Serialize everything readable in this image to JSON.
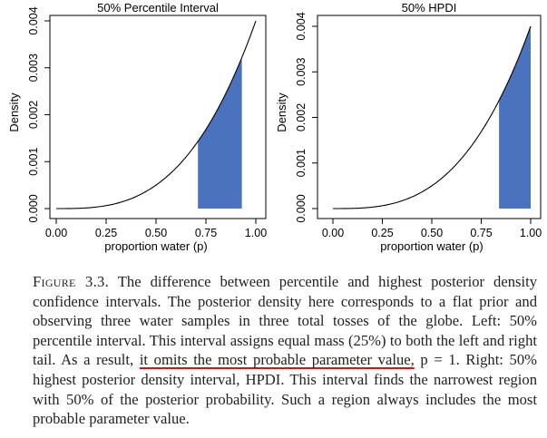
{
  "chart_data": [
    {
      "type": "area",
      "title": "50% Percentile Interval",
      "xlabel": "proportion water (p)",
      "ylabel": "Density",
      "xlim": [
        0,
        1
      ],
      "ylim": [
        0,
        0.004
      ],
      "x_ticks": [
        "0.00",
        "0.25",
        "0.50",
        "0.75",
        "1.00"
      ],
      "y_ticks": [
        "0.000",
        "0.001",
        "0.002",
        "0.003",
        "0.004"
      ],
      "curve": {
        "x": [
          0.0,
          0.1,
          0.2,
          0.3,
          0.4,
          0.5,
          0.6,
          0.7,
          0.8,
          0.9,
          1.0
        ],
        "y": [
          0.0,
          4e-06,
          3.2e-05,
          0.000108,
          0.000256,
          0.0005,
          0.000864,
          0.001372,
          0.002048,
          0.002916,
          0.004
        ]
      },
      "shaded_interval": [
        0.71,
        0.93
      ],
      "shade_color": "#4a72bd",
      "grid": false
    },
    {
      "type": "area",
      "title": "50% HPDI",
      "xlabel": "proportion water (p)",
      "ylabel": "Density",
      "xlim": [
        0,
        1
      ],
      "ylim": [
        0,
        0.004
      ],
      "x_ticks": [
        "0.00",
        "0.25",
        "0.50",
        "0.75",
        "1.00"
      ],
      "y_ticks": [
        "0.000",
        "0.001",
        "0.002",
        "0.003",
        "0.004"
      ],
      "curve": {
        "x": [
          0.0,
          0.1,
          0.2,
          0.3,
          0.4,
          0.5,
          0.6,
          0.7,
          0.8,
          0.9,
          1.0
        ],
        "y": [
          0.0,
          4e-06,
          3.2e-05,
          0.000108,
          0.000256,
          0.0005,
          0.000864,
          0.001372,
          0.002048,
          0.002916,
          0.004
        ]
      },
      "shaded_interval": [
        0.84,
        1.0
      ],
      "shade_color": "#4a72bd",
      "grid": false
    }
  ],
  "caption": {
    "label": "Figure 3.3.",
    "part1": " The difference between percentile and highest posterior density confidence intervals. The posterior density here corresponds to a flat prior and observing three water samples in three total tosses of the globe. Left: 50% percentile interval. This interval assigns equal mass (25%) to both the left and right tail. As a result, ",
    "highlight": "it omits the most probable parameter value,",
    "part2": " p = 1. Right: 50% highest posterior density interval, HPDI. This interval finds the narrowest region with 50% of the posterior probability. Such a region always includes the most probable parameter value."
  }
}
